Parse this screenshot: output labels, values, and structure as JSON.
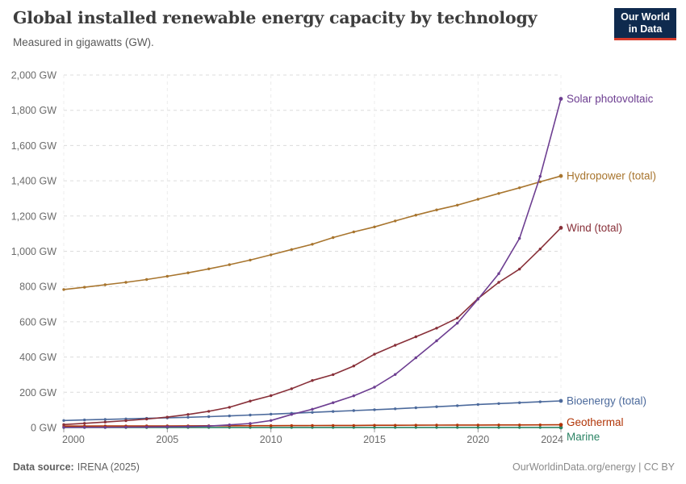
{
  "header": {
    "title": "Global installed renewable energy capacity by technology",
    "subtitle": "Measured in gigawatts (GW).",
    "logo_line1": "Our World",
    "logo_line2": "in Data"
  },
  "footer": {
    "source_label": "Data source:",
    "source_value": "IRENA (2025)",
    "right": "OurWorldinData.org/energy | CC BY"
  },
  "colors": {
    "gridline": "#dcdcdc",
    "zero_line": "#a8a8a8",
    "vertical_gridline": "#ececec",
    "tick_mark": "#999999",
    "axis_text": "#6b6b6b",
    "logo_bg": "#0f2a4e",
    "logo_accent": "#d73b2b"
  },
  "chart_data": {
    "type": "line",
    "title": "Global installed renewable energy capacity by technology",
    "subtitle": "Measured in gigawatts (GW).",
    "unit": "GW",
    "xlabel": "",
    "ylabel": "",
    "xlim": [
      2000,
      2024
    ],
    "ylim": [
      0,
      2000
    ],
    "grid": "horizontal-dashed",
    "legend_position": "labels-at-line-end-right",
    "x": [
      2000,
      2001,
      2002,
      2003,
      2004,
      2005,
      2006,
      2007,
      2008,
      2009,
      2010,
      2011,
      2012,
      2013,
      2014,
      2015,
      2016,
      2017,
      2018,
      2019,
      2020,
      2021,
      2022,
      2023,
      2024
    ],
    "x_ticks": [
      2000,
      2005,
      2010,
      2015,
      2020,
      2024
    ],
    "y_ticks": [
      0,
      200,
      400,
      600,
      800,
      1000,
      1200,
      1400,
      1600,
      1800,
      2000
    ],
    "y_tick_suffix": " GW",
    "series": [
      {
        "name": "Solar photovoltaic",
        "color": "#6d3e91",
        "label_dy": 4.5,
        "values": [
          0.8,
          1.2,
          1.6,
          2.2,
          3.0,
          4.1,
          5.7,
          8.4,
          15,
          23,
          40,
          74,
          104,
          141,
          180,
          229,
          301,
          396,
          492,
          592,
          728,
          873,
          1073,
          1425,
          1865
        ]
      },
      {
        "name": "Hydropower (total)",
        "color": "#a8752e",
        "label_dy": 4.5,
        "values": [
          783,
          796,
          810,
          824,
          840,
          858,
          878,
          900,
          924,
          950,
          980,
          1010,
          1040,
          1078,
          1110,
          1138,
          1172,
          1205,
          1235,
          1262,
          1295,
          1328,
          1360,
          1394,
          1427
        ]
      },
      {
        "name": "Wind (total)",
        "color": "#883039",
        "label_dy": 4.5,
        "values": [
          17,
          24,
          31,
          39,
          48,
          59,
          74,
          92,
          115,
          150,
          181,
          220,
          267,
          300,
          349,
          416,
          467,
          515,
          564,
          621,
          732,
          824,
          899,
          1013,
          1133
        ]
      },
      {
        "name": "Bioenergy (total)",
        "color": "#4c6a9c",
        "label_dy": 4.5,
        "values": [
          40,
          43,
          46,
          49,
          52,
          55,
          58,
          62,
          66,
          71,
          76,
          81,
          86,
          91,
          96,
          101,
          106,
          112,
          118,
          124,
          131,
          136,
          141,
          146,
          151
        ]
      },
      {
        "name": "Geothermal",
        "color": "#b13507",
        "label_dy": 1.5,
        "values": [
          8.2,
          8.4,
          8.6,
          8.9,
          9.0,
          9.3,
          9.6,
          9.9,
          10.1,
          10.4,
          10.7,
          11.0,
          11.3,
          11.7,
          12.1,
          12.6,
          13.0,
          13.3,
          13.6,
          14.0,
          14.2,
          14.5,
          14.8,
          15.0,
          15.4
        ]
      },
      {
        "name": "Marine",
        "color": "#2c8465",
        "label_dy": 16,
        "values": [
          0.2,
          0.2,
          0.2,
          0.2,
          0.2,
          0.2,
          0.3,
          0.3,
          0.3,
          0.3,
          0.3,
          0.5,
          0.5,
          0.5,
          0.5,
          0.5,
          0.5,
          0.5,
          0.5,
          0.5,
          0.5,
          0.5,
          0.5,
          0.5,
          0.6
        ]
      }
    ]
  }
}
